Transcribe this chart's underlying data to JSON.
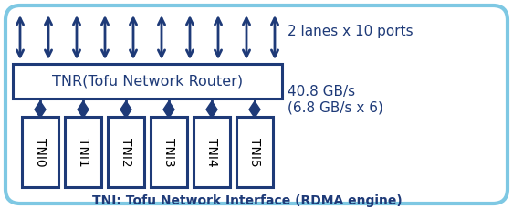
{
  "bg_color": "#ffffff",
  "outer_box_color": "#7ec8e3",
  "inner_box_color": "#1e3a78",
  "tnr_box_color": "#ffffff",
  "tni_box_facecolor": "#ffffff",
  "tni_box_edgecolor": "#1e3a78",
  "tni_text_color": "#000000",
  "arrow_color": "#1e3a78",
  "text_color": "#1e3a78",
  "tnr_label": "TNR(Tofu Network Router)",
  "tni_labels": [
    "TNI0",
    "TNI1",
    "TNI2",
    "TNI3",
    "TNI4",
    "TNI5"
  ],
  "right_text1": "2 lanes x 10 ports",
  "right_text2a": "40.8 GB/s",
  "right_text2b": "(6.8 GB/s x 6)",
  "bottom_text": "TNI: Tofu Network Interface (RDMA engine)",
  "num_arrows": 10,
  "figw": 5.62,
  "figh": 2.29,
  "dpi": 100
}
